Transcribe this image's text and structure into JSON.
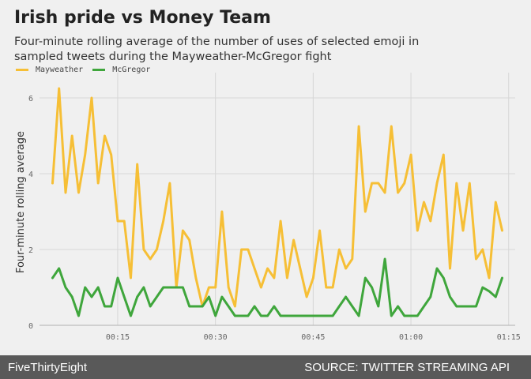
{
  "title": "Irish pride vs Money Team",
  "subtitle": "Four-minute rolling average of the number of uses of selected emoji in sampled tweets during the Mayweather-McGregor fight",
  "footer": {
    "left": "FiveThirtyEight",
    "right": "SOURCE: TWITTER STREAMING API"
  },
  "chart_data": {
    "type": "line",
    "ylabel": "Four-minute rolling average",
    "xlabel": "",
    "xlim": [
      3,
      76
    ],
    "ylim": [
      0,
      6.5
    ],
    "xticks": [
      {
        "value": 15,
        "label": "00:15"
      },
      {
        "value": 30,
        "label": "00:30"
      },
      {
        "value": 45,
        "label": "00:45"
      },
      {
        "value": 60,
        "label": "01:00"
      },
      {
        "value": 75,
        "label": "01:15"
      }
    ],
    "yticks": [
      0,
      2,
      4,
      6
    ],
    "grid": true,
    "legend": "top-left",
    "series": [
      {
        "name": "Mayweather",
        "color": "#f6bf36",
        "x": [
          5,
          6,
          7,
          8,
          9,
          10,
          11,
          12,
          13,
          14,
          15,
          16,
          17,
          18,
          19,
          20,
          21,
          22,
          23,
          24,
          25,
          26,
          27,
          28,
          29,
          30,
          31,
          32,
          33,
          34,
          35,
          36,
          37,
          38,
          39,
          40,
          41,
          42,
          43,
          44,
          45,
          46,
          47,
          48,
          49,
          50,
          51,
          52,
          53,
          54,
          55,
          56,
          57,
          58,
          59,
          60,
          61,
          62,
          63,
          64,
          65,
          66,
          67,
          68,
          69,
          70,
          71,
          72,
          73,
          74
        ],
        "y": [
          3.75,
          6.25,
          3.5,
          5.0,
          3.5,
          4.5,
          6.0,
          3.75,
          5.0,
          4.5,
          2.75,
          2.75,
          1.25,
          4.25,
          2.0,
          1.75,
          2.0,
          2.75,
          3.75,
          1.0,
          2.5,
          2.25,
          1.25,
          0.5,
          1.0,
          1.0,
          3.0,
          1.0,
          0.5,
          2.0,
          2.0,
          1.5,
          1.0,
          1.5,
          1.25,
          2.75,
          1.25,
          2.25,
          1.5,
          0.75,
          1.25,
          2.5,
          1.0,
          1.0,
          2.0,
          1.5,
          1.75,
          5.25,
          3.0,
          3.75,
          3.75,
          3.5,
          5.25,
          3.5,
          3.75,
          4.5,
          2.5,
          3.25,
          2.75,
          3.75,
          4.5,
          1.5,
          3.75,
          2.5,
          3.75,
          1.75,
          2.0,
          1.25,
          3.25,
          2.5
        ]
      },
      {
        "name": "McGregor",
        "color": "#3fa63c",
        "x": [
          5,
          6,
          7,
          8,
          9,
          10,
          11,
          12,
          13,
          14,
          15,
          16,
          17,
          18,
          19,
          20,
          21,
          22,
          23,
          24,
          25,
          26,
          27,
          28,
          29,
          30,
          31,
          32,
          33,
          34,
          35,
          36,
          37,
          38,
          39,
          40,
          41,
          42,
          43,
          44,
          45,
          46,
          47,
          48,
          49,
          50,
          51,
          52,
          53,
          54,
          55,
          56,
          57,
          58,
          59,
          60,
          61,
          62,
          63,
          64,
          65,
          66,
          67,
          68,
          69,
          70,
          71,
          72,
          73,
          74
        ],
        "y": [
          1.25,
          1.5,
          1.0,
          0.75,
          0.25,
          1.0,
          0.75,
          1.0,
          0.5,
          0.5,
          1.25,
          0.75,
          0.25,
          0.75,
          1.0,
          0.5,
          0.75,
          1.0,
          1.0,
          1.0,
          1.0,
          0.5,
          0.5,
          0.5,
          0.75,
          0.25,
          0.75,
          0.5,
          0.25,
          0.25,
          0.25,
          0.5,
          0.25,
          0.25,
          0.5,
          0.25,
          0.25,
          0.25,
          0.25,
          0.25,
          0.25,
          0.25,
          0.25,
          0.25,
          0.5,
          0.75,
          0.5,
          0.25,
          1.25,
          1.0,
          0.5,
          1.75,
          0.25,
          0.5,
          0.25,
          0.25,
          0.25,
          0.5,
          0.75,
          1.5,
          1.25,
          0.75,
          0.5,
          0.5,
          0.5,
          0.5,
          1.0,
          0.9,
          0.75,
          1.25
        ]
      }
    ]
  }
}
